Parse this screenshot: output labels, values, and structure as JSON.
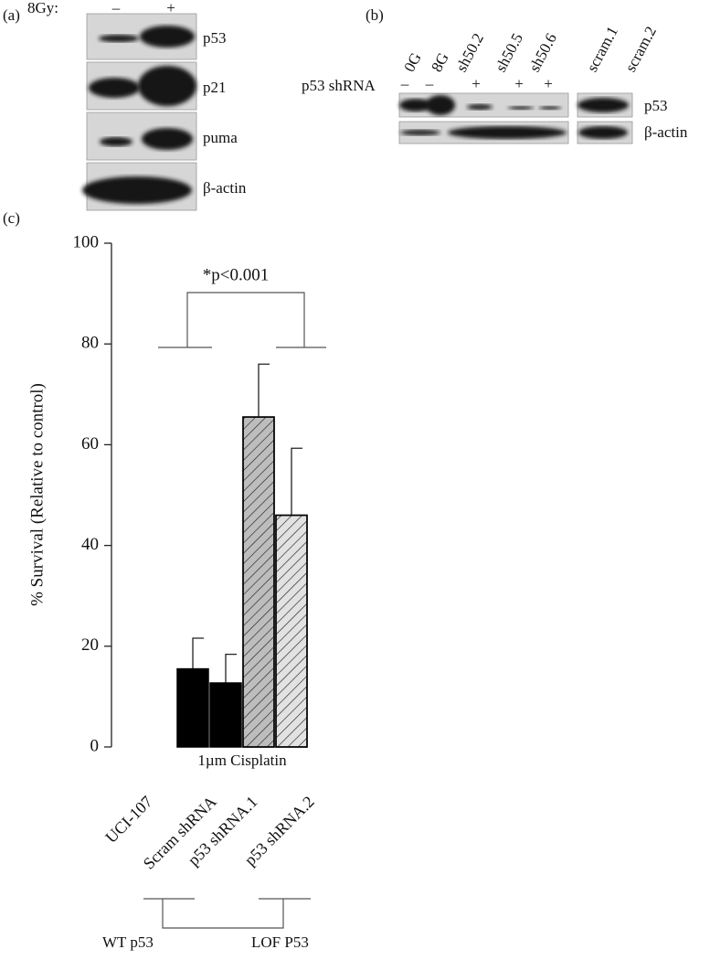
{
  "panel_a": {
    "label": "(a)",
    "treatment": "8Gy:",
    "conditions": [
      "–",
      "+"
    ],
    "rows": [
      "p53",
      "p21",
      "puma",
      "β-actin"
    ]
  },
  "panel_b": {
    "label": "(b)",
    "lanes": [
      "0G",
      "8G",
      "sh50.2",
      "sh50.5",
      "sh50.6",
      "scram.1",
      "scram.2"
    ],
    "shrna_label": "p53 shRNA",
    "shrna_marks": [
      "–",
      "–",
      "+",
      "+",
      "+"
    ],
    "rows": [
      "p53",
      "β-actin"
    ]
  },
  "chart_data": {
    "type": "bar",
    "panel_label": "(c)",
    "ylabel": "% Survival (Relative to control)",
    "xlabel": "1µm Cisplatin",
    "categories": [
      "UCI-107",
      "Scram shRNA",
      "p53 shRNA.1",
      "p53 shRNA.2"
    ],
    "values": [
      15.5,
      12.7,
      65.5,
      46
    ],
    "errors": [
      6.1,
      5.7,
      10.5,
      13.3
    ],
    "colors": [
      "#000000",
      "#000000",
      "#bdbdbd",
      "#e2e2e2"
    ],
    "hatch": [
      false,
      false,
      true,
      true
    ],
    "ylim": [
      0,
      100
    ],
    "yticks": [
      0,
      20,
      40,
      60,
      80,
      100
    ],
    "annotation": "*p<0.001",
    "groups": [
      "WT p53",
      "LOF P53"
    ]
  }
}
